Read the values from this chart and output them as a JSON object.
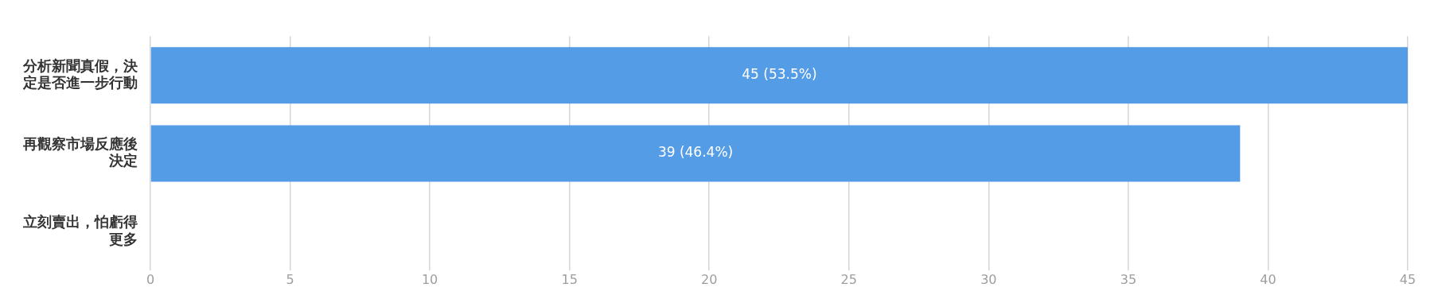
{
  "chart_data": {
    "type": "bar",
    "orientation": "horizontal",
    "categories": [
      "分析新聞真假，決定是否進一步行動",
      "再觀察市場反應後決定",
      "立刻賣出，怕虧得更多"
    ],
    "values": [
      45,
      39,
      0
    ],
    "color": "#559ce6",
    "value_labels": [
      "45 (53.5%)",
      "39 (46.4%)",
      null
    ],
    "xlim": [
      0,
      45
    ],
    "xticks": [
      0,
      5,
      10,
      15,
      20,
      25,
      30,
      35,
      40,
      45
    ],
    "grid": "x",
    "legend": false
  }
}
